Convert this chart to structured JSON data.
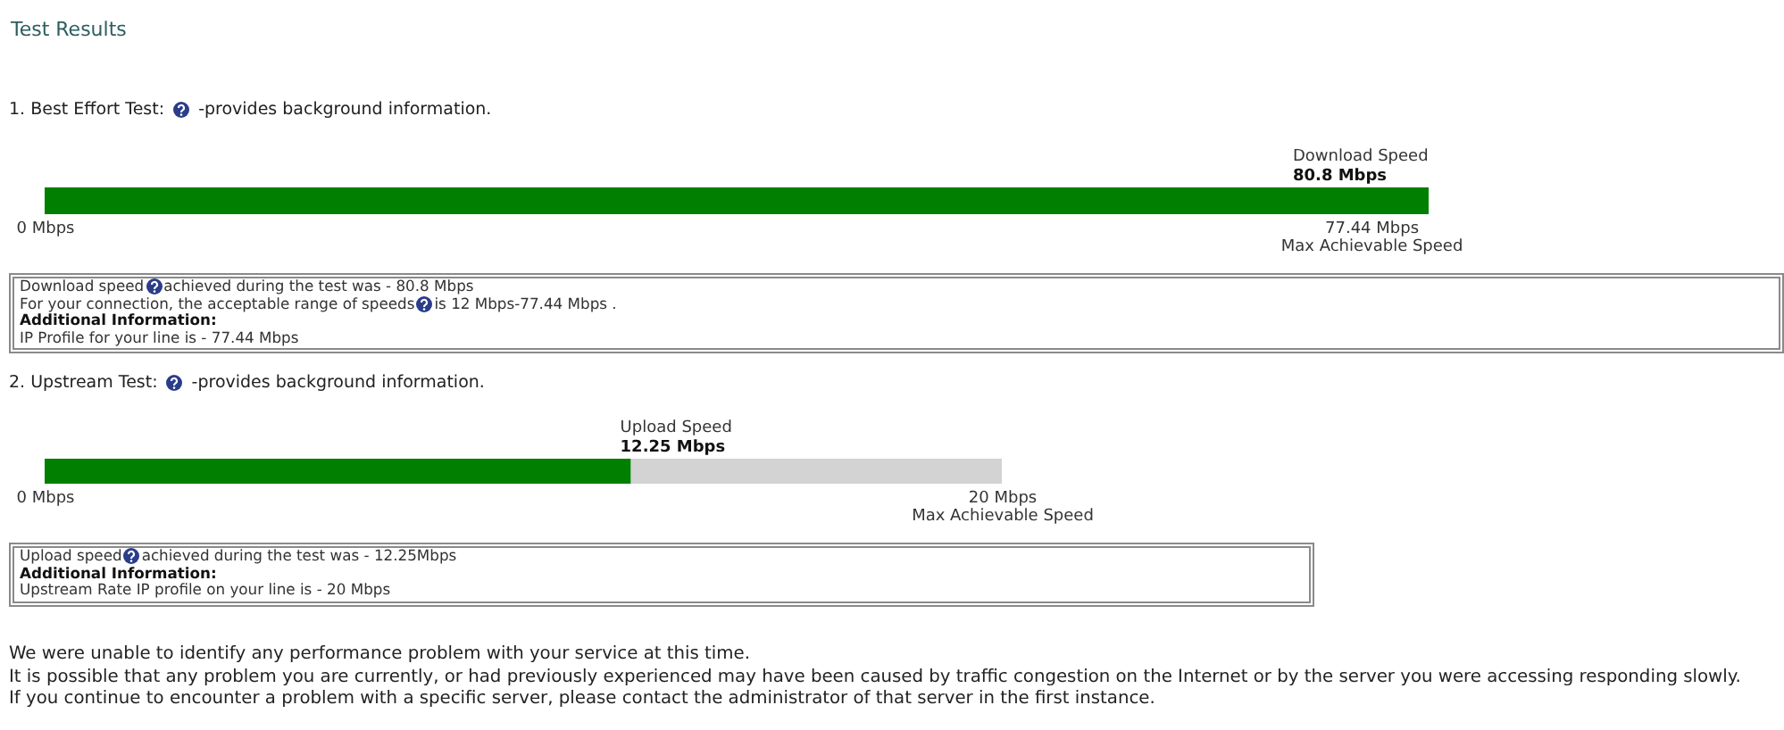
{
  "chart_data": [
    {
      "type": "bar",
      "orientation": "horizontal",
      "title": "1. Best Effort Test:",
      "subtitle": "-provides background information.",
      "categories": [
        "Download Speed"
      ],
      "values": [
        80.8
      ],
      "value_labels": [
        "80.8 Mbps"
      ],
      "color": "#007f00",
      "xlim": [
        0,
        80.8
      ],
      "xticks": [
        {
          "value": 0,
          "label": "0 Mbps"
        },
        {
          "value": 77.44,
          "label": "77.44 Mbps"
        }
      ],
      "xlabel": "Max Achievable Speed",
      "annotations": [
        "Test Results",
        "Download speed",
        "achieved during the test was - 80.8 Mbps",
        "For your connection, the acceptable range of speeds",
        "is 12 Mbps-77.44 Mbps .",
        "Additional Information:",
        "IP Profile for your line is - 77.44 Mbps"
      ]
    },
    {
      "type": "bar",
      "orientation": "horizontal",
      "title": "2. Upstream Test:",
      "subtitle": "-provides background information.",
      "categories": [
        "Upload Speed"
      ],
      "values": [
        12.25
      ],
      "value_labels": [
        "12.25 Mbps"
      ],
      "color": "#007f00",
      "xlim": [
        0,
        20
      ],
      "xticks": [
        {
          "value": 0,
          "label": "0 Mbps"
        },
        {
          "value": 20,
          "label": "20 Mbps"
        }
      ],
      "xlabel": "Max Achievable Speed",
      "bands": [
        {
          "axis": "x",
          "from": 12.25,
          "to": 20,
          "color": "#d3d3d3"
        }
      ],
      "annotations": [
        "Upload speed",
        "achieved during the test was - 12.25Mbps",
        "Additional Information:",
        "Upstream Rate IP profile on your line is - 20 Mbps",
        "We were unable to identify any performance problem with your service at this time.",
        "It is possible that any problem you are currently, or had previously experienced may have been caused by traffic congestion on the Internet or by the server you were accessing responding slowly.",
        "If you continue to encounter a problem with a specific server, please contact the administrator of that server in the first instance."
      ]
    }
  ]
}
